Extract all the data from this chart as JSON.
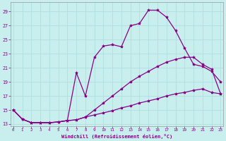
{
  "background_color": "#c8eeee",
  "grid_color": "#aadddd",
  "line_color": "#880088",
  "xlabel": "Windchill (Refroidissement éolien,°C)",
  "xticks": [
    0,
    1,
    2,
    3,
    4,
    5,
    6,
    7,
    8,
    9,
    10,
    11,
    12,
    13,
    14,
    15,
    16,
    17,
    18,
    19,
    20,
    21,
    22,
    23
  ],
  "yticks": [
    13,
    15,
    17,
    19,
    21,
    23,
    25,
    27,
    29
  ],
  "xlim": [
    -0.3,
    23.3
  ],
  "ylim": [
    12.7,
    30.3
  ],
  "line1_x": [
    0,
    1,
    2,
    3,
    4,
    5,
    6,
    7,
    8,
    9,
    10,
    11,
    12,
    13,
    14,
    15,
    16,
    17,
    18,
    19,
    20,
    21,
    22,
    23
  ],
  "line1_y": [
    15.0,
    13.7,
    13.2,
    13.2,
    13.2,
    13.3,
    13.5,
    20.3,
    17.0,
    22.5,
    24.1,
    24.3,
    24.0,
    27.0,
    27.3,
    29.2,
    29.2,
    28.2,
    26.3,
    23.8,
    21.5,
    21.2,
    20.5,
    19.0
  ],
  "line2_x": [
    0,
    1,
    2,
    3,
    4,
    5,
    6,
    7,
    8,
    9,
    10,
    11,
    12,
    13,
    14,
    15,
    16,
    17,
    18,
    19,
    20,
    21,
    22,
    23
  ],
  "line2_y": [
    15.0,
    13.7,
    13.2,
    13.2,
    13.2,
    13.3,
    13.5,
    13.6,
    14.0,
    15.0,
    16.0,
    17.0,
    18.0,
    19.0,
    19.8,
    20.5,
    21.2,
    21.8,
    22.2,
    22.5,
    22.5,
    21.5,
    20.8,
    17.3
  ],
  "line3_x": [
    0,
    1,
    2,
    3,
    4,
    5,
    6,
    7,
    8,
    9,
    10,
    11,
    12,
    13,
    14,
    15,
    16,
    17,
    18,
    19,
    20,
    21,
    22,
    23
  ],
  "line3_y": [
    15.0,
    13.7,
    13.2,
    13.2,
    13.2,
    13.3,
    13.5,
    13.6,
    14.0,
    14.3,
    14.6,
    14.9,
    15.3,
    15.6,
    16.0,
    16.3,
    16.6,
    17.0,
    17.3,
    17.5,
    17.8,
    18.0,
    17.5,
    17.3
  ]
}
